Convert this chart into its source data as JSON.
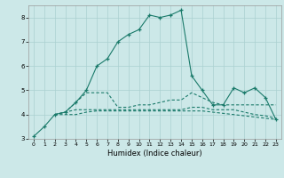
{
  "title": "",
  "xlabel": "Humidex (Indice chaleur)",
  "bg_color": "#cce8e8",
  "line_color": "#1a7a6a",
  "grid_color": "#aad0d0",
  "xlim": [
    -0.5,
    23.5
  ],
  "ylim": [
    3,
    8.5
  ],
  "yticks": [
    3,
    4,
    5,
    6,
    7,
    8
  ],
  "xticks": [
    0,
    1,
    2,
    3,
    4,
    5,
    6,
    7,
    8,
    9,
    10,
    11,
    12,
    13,
    14,
    15,
    16,
    17,
    18,
    19,
    20,
    21,
    22,
    23
  ],
  "curves": [
    {
      "x": [
        0,
        1,
        2,
        3,
        4,
        5,
        6,
        7,
        8,
        9,
        10,
        11,
        12,
        13,
        14,
        15,
        16,
        17,
        18,
        19,
        20,
        21,
        22,
        23
      ],
      "y": [
        3.1,
        3.5,
        4.0,
        4.1,
        4.5,
        5.0,
        6.0,
        6.3,
        7.0,
        7.3,
        7.5,
        8.1,
        8.0,
        8.1,
        8.3,
        5.6,
        5.0,
        4.4,
        4.4,
        5.1,
        4.9,
        5.1,
        4.7,
        3.8
      ],
      "style": "-",
      "marker": "+"
    },
    {
      "x": [
        2,
        3,
        4,
        5,
        6,
        7,
        8,
        9,
        10,
        11,
        12,
        13,
        14,
        15,
        16,
        17,
        18,
        19,
        20,
        21,
        22,
        23
      ],
      "y": [
        4.0,
        4.1,
        4.5,
        4.9,
        4.9,
        4.9,
        4.3,
        4.3,
        4.4,
        4.4,
        4.5,
        4.6,
        4.6,
        4.9,
        4.7,
        4.5,
        4.4,
        4.4,
        4.4,
        4.4,
        4.4,
        4.4
      ],
      "style": "--",
      "marker": null
    },
    {
      "x": [
        2,
        3,
        4,
        5,
        6,
        7,
        8,
        9,
        10,
        11,
        12,
        13,
        14,
        15,
        16,
        17,
        18,
        19,
        20,
        21,
        22,
        23
      ],
      "y": [
        4.0,
        4.1,
        4.2,
        4.2,
        4.2,
        4.2,
        4.2,
        4.2,
        4.2,
        4.2,
        4.2,
        4.2,
        4.2,
        4.3,
        4.3,
        4.2,
        4.2,
        4.2,
        4.1,
        4.0,
        3.95,
        3.85
      ],
      "style": "--",
      "marker": null
    },
    {
      "x": [
        2,
        3,
        4,
        5,
        6,
        7,
        8,
        9,
        10,
        11,
        12,
        13,
        14,
        15,
        16,
        17,
        18,
        19,
        20,
        21,
        22,
        23
      ],
      "y": [
        4.0,
        4.0,
        4.0,
        4.1,
        4.15,
        4.15,
        4.15,
        4.15,
        4.15,
        4.15,
        4.15,
        4.15,
        4.15,
        4.15,
        4.15,
        4.1,
        4.05,
        4.0,
        3.95,
        3.9,
        3.85,
        3.8
      ],
      "style": "-",
      "marker": null
    }
  ]
}
